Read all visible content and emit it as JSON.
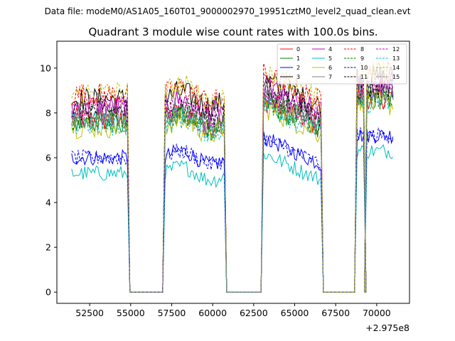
{
  "chart_data": {
    "type": "line",
    "suptitle": "Data file: modeM0/AS1A05_160T01_9000002970_19951cztM0_level2_quad_clean.evt",
    "title": "Quadrant 3 module wise count rates with 100.0s bins.",
    "xlabel": "",
    "ylabel": "",
    "x_offset_label": "+2.975e8",
    "xlim": [
      50500,
      72000
    ],
    "ylim": [
      -0.5,
      11.2
    ],
    "xticks": [
      52500,
      55000,
      57500,
      60000,
      62500,
      65000,
      67500,
      70000
    ],
    "yticks": [
      0,
      2,
      4,
      6,
      8,
      10
    ],
    "grid": false,
    "legend_position": "top-right",
    "segments": [
      [
        51400,
        54800
      ],
      [
        57100,
        60700
      ],
      [
        63100,
        66600
      ],
      [
        68800,
        69200
      ],
      [
        69400,
        71000
      ]
    ],
    "gaps": [
      [
        55000,
        57000
      ],
      [
        60900,
        63000
      ],
      [
        66800,
        68700
      ],
      [
        69250,
        69350
      ]
    ],
    "series": [
      {
        "name": "0",
        "color": "#ff0000",
        "dash": "solid",
        "level": 7.7
      },
      {
        "name": "1",
        "color": "#008000",
        "dash": "solid",
        "level": 7.6
      },
      {
        "name": "2",
        "color": "#0000ff",
        "dash": "solid",
        "level": 6.0
      },
      {
        "name": "3",
        "color": "#000000",
        "dash": "solid",
        "level": 8.6
      },
      {
        "name": "4",
        "color": "#bf00bf",
        "dash": "solid",
        "level": 8.3
      },
      {
        "name": "5",
        "color": "#00bfbf",
        "dash": "solid",
        "level": 5.3
      },
      {
        "name": "6",
        "color": "#bfbf00",
        "dash": "solid",
        "level": 7.4
      },
      {
        "name": "7",
        "color": "#808080",
        "dash": "solid",
        "level": 7.9
      },
      {
        "name": "8",
        "color": "#ff0000",
        "dash": "dashed",
        "level": 8.8
      },
      {
        "name": "9",
        "color": "#008000",
        "dash": "dashed",
        "level": 7.7
      },
      {
        "name": "10",
        "color": "#0000ff",
        "dash": "dashed",
        "level": 6.0
      },
      {
        "name": "11",
        "color": "#000000",
        "dash": "dashed",
        "level": 8.1
      },
      {
        "name": "12",
        "color": "#bf00bf",
        "dash": "dashed",
        "level": 8.0
      },
      {
        "name": "13",
        "color": "#00bfbf",
        "dash": "dashed",
        "level": 7.5
      },
      {
        "name": "14",
        "color": "#bfbf00",
        "dash": "dashed",
        "level": 8.9
      },
      {
        "name": "15",
        "color": "#808080",
        "dash": "dashed",
        "level": 7.7
      }
    ]
  }
}
